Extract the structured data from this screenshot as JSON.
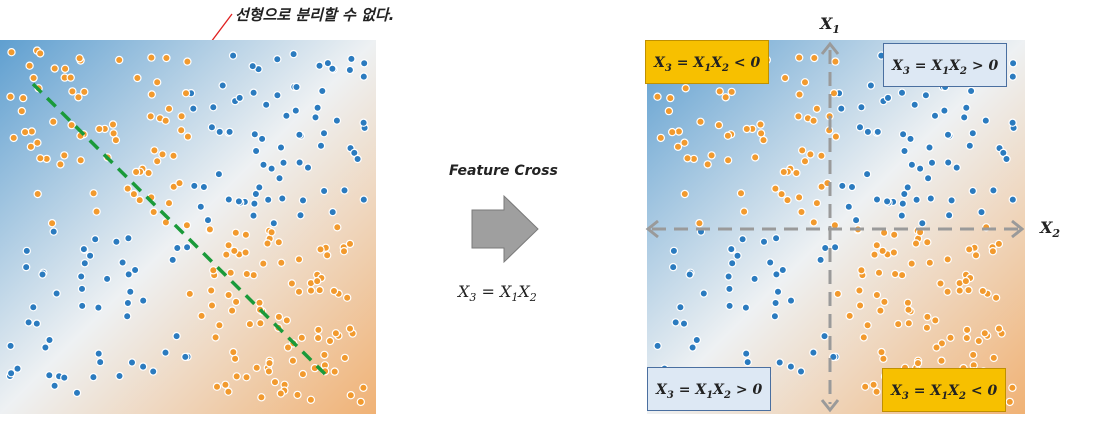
{
  "annotation": "선형으로 분리할 수 없다.",
  "feature_cross": "Feature Cross",
  "formula": {
    "lhs_var": "X",
    "lhs_sub": "3",
    "rhs_var1": "X",
    "rhs_sub1": "1",
    "rhs_var2": "X",
    "rhs_sub2": "2"
  },
  "axes": {
    "x1": {
      "var": "X",
      "sub": "1"
    },
    "x2": {
      "var": "X",
      "sub": "2"
    }
  },
  "quadrants": {
    "top_left": {
      "rel": "<",
      "zero": "0"
    },
    "top_right": {
      "rel": ">",
      "zero": "0"
    },
    "bottom_left": {
      "rel": ">",
      "zero": "0"
    },
    "bottom_right": {
      "rel": "<",
      "zero": "0"
    }
  },
  "colors": {
    "orange_point": "#f29a2e",
    "blue_point": "#2b7bbf",
    "bg_blue": "#5f9fd0",
    "bg_orange": "#f0b275",
    "separator": "#1a9a3a",
    "axis": "#9a9a9a",
    "callout": "#e02020",
    "box_negative": "#f7c000",
    "box_positive": "#dde8f4"
  }
}
